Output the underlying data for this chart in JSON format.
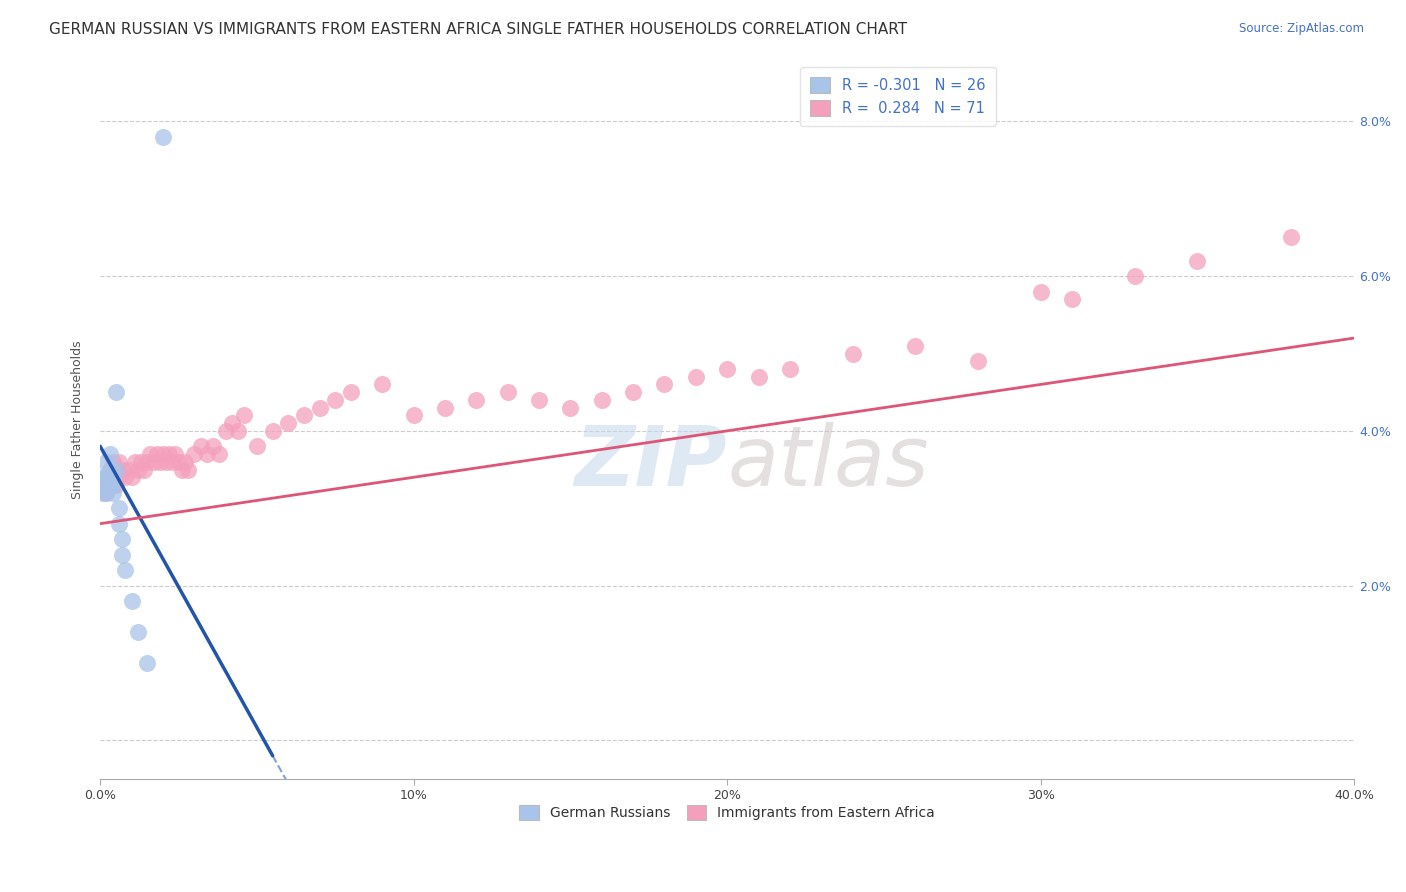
{
  "title": "GERMAN RUSSIAN VS IMMIGRANTS FROM EASTERN AFRICA SINGLE FATHER HOUSEHOLDS CORRELATION CHART",
  "source": "Source: ZipAtlas.com",
  "ylabel": "Single Father Households",
  "watermark": "ZIPatlas",
  "xlim": [
    0.0,
    0.4
  ],
  "ylim": [
    -0.005,
    0.088
  ],
  "xtick_vals": [
    0.0,
    0.1,
    0.2,
    0.3,
    0.4
  ],
  "xtick_labels": [
    "0.0%",
    "10%",
    "20%",
    "30%",
    "40.0%"
  ],
  "ytick_vals": [
    0.0,
    0.02,
    0.04,
    0.06,
    0.08
  ],
  "ytick_labels_right": [
    "",
    "2.0%",
    "4.0%",
    "6.0%",
    "8.0%"
  ],
  "blue_color": "#a8c4e8",
  "pink_color": "#f4a0bc",
  "blue_line_color": "#2255aa",
  "pink_line_color": "#dd5577",
  "background": "#ffffff",
  "grid_color": "#cccccc",
  "title_fontsize": 11,
  "axis_label_fontsize": 9,
  "tick_fontsize": 9,
  "legend_top": [
    {
      "label": "R = -0.301   N = 26",
      "color": "#a8c4e8"
    },
    {
      "label": "R =  0.284   N = 71",
      "color": "#f4a0bc"
    }
  ],
  "legend_bottom": [
    {
      "label": "German Russians",
      "color": "#a8c4e8"
    },
    {
      "label": "Immigrants from Eastern Africa",
      "color": "#f4a0bc"
    }
  ],
  "blue_x": [
    0.001,
    0.001,
    0.001,
    0.001,
    0.002,
    0.002,
    0.002,
    0.002,
    0.003,
    0.003,
    0.003,
    0.003,
    0.004,
    0.004,
    0.004,
    0.005,
    0.005,
    0.006,
    0.006,
    0.007,
    0.007,
    0.008,
    0.01,
    0.012,
    0.015,
    0.02
  ],
  "blue_y": [
    0.033,
    0.034,
    0.033,
    0.032,
    0.036,
    0.034,
    0.033,
    0.032,
    0.037,
    0.035,
    0.034,
    0.033,
    0.034,
    0.033,
    0.032,
    0.035,
    0.045,
    0.03,
    0.028,
    0.026,
    0.024,
    0.022,
    0.018,
    0.014,
    0.01,
    0.078
  ],
  "pink_x": [
    0.001,
    0.002,
    0.002,
    0.003,
    0.003,
    0.004,
    0.004,
    0.005,
    0.005,
    0.006,
    0.006,
    0.007,
    0.008,
    0.009,
    0.01,
    0.011,
    0.012,
    0.013,
    0.014,
    0.015,
    0.016,
    0.017,
    0.018,
    0.019,
    0.02,
    0.021,
    0.022,
    0.023,
    0.024,
    0.025,
    0.026,
    0.027,
    0.028,
    0.03,
    0.032,
    0.034,
    0.036,
    0.038,
    0.04,
    0.042,
    0.044,
    0.046,
    0.05,
    0.055,
    0.06,
    0.065,
    0.07,
    0.075,
    0.08,
    0.09,
    0.1,
    0.11,
    0.12,
    0.13,
    0.14,
    0.15,
    0.16,
    0.17,
    0.18,
    0.19,
    0.2,
    0.21,
    0.22,
    0.24,
    0.26,
    0.28,
    0.3,
    0.31,
    0.33,
    0.35,
    0.38
  ],
  "pink_y": [
    0.033,
    0.034,
    0.032,
    0.035,
    0.033,
    0.036,
    0.034,
    0.035,
    0.033,
    0.036,
    0.034,
    0.035,
    0.034,
    0.035,
    0.034,
    0.036,
    0.035,
    0.036,
    0.035,
    0.036,
    0.037,
    0.036,
    0.037,
    0.036,
    0.037,
    0.036,
    0.037,
    0.036,
    0.037,
    0.036,
    0.035,
    0.036,
    0.035,
    0.037,
    0.038,
    0.037,
    0.038,
    0.037,
    0.04,
    0.041,
    0.04,
    0.042,
    0.038,
    0.04,
    0.041,
    0.042,
    0.043,
    0.044,
    0.045,
    0.046,
    0.042,
    0.043,
    0.044,
    0.045,
    0.044,
    0.043,
    0.044,
    0.045,
    0.046,
    0.047,
    0.048,
    0.047,
    0.048,
    0.05,
    0.051,
    0.049,
    0.058,
    0.057,
    0.06,
    0.062,
    0.065
  ],
  "blue_line_x0": 0.0,
  "blue_line_x_solid_end": 0.055,
  "blue_line_x_dashed_end": 0.2,
  "blue_line_y0": 0.038,
  "blue_line_y_solid_end": -0.002,
  "pink_line_x0": 0.0,
  "pink_line_x1": 0.4,
  "pink_line_y0": 0.028,
  "pink_line_y1": 0.052
}
